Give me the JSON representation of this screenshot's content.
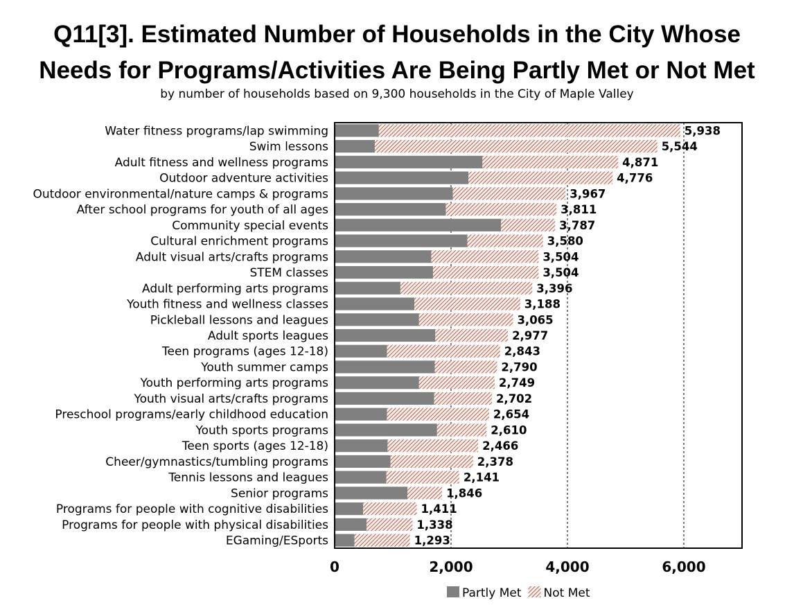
{
  "chart_data": {
    "type": "bar",
    "orientation": "horizontal",
    "stacked": true,
    "title_line1": "Q11[3]. Estimated Number of Households in the City Whose",
    "title_line2": "Needs for Programs/Activities Are Being Partly Met or Not Met",
    "subtitle": "by number of households based on 9,300 households in the City of Maple Valley",
    "xlim": [
      0,
      7000
    ],
    "x_ticks": [
      0,
      2000,
      4000,
      6000
    ],
    "x_tick_labels": [
      "0",
      "2,000",
      "4,000",
      "6,000"
    ],
    "grid": "dashed vertical at 2,000 / 4,000 / 6,000",
    "legend_position": "bottom",
    "categories": [
      "Water fitness programs/lap swimming",
      "Swim lessons",
      "Adult fitness and wellness programs",
      "Outdoor adventure activities",
      "Outdoor environmental/nature camps & programs",
      "After school programs for youth of all ages",
      "Community special events",
      "Cultural enrichment programs",
      "Adult visual arts/crafts programs",
      "STEM classes",
      "Adult performing arts programs",
      "Youth fitness and wellness classes",
      "Pickleball lessons and leagues",
      "Adult sports leagues",
      "Teen programs (ages 12-18)",
      "Youth summer camps",
      "Youth performing arts programs",
      "Youth visual arts/crafts programs",
      "Preschool programs/early childhood education",
      "Youth sports programs",
      "Teen sports (ages 12-18)",
      "Cheer/gymnastics/tumbling programs",
      "Tennis lessons and leagues",
      "Senior programs",
      "Programs for people with cognitive disabilities",
      "Programs for people with physical disabilities",
      "EGaming/ESports"
    ],
    "totals": [
      5938,
      5544,
      4871,
      4776,
      3967,
      3811,
      3787,
      3580,
      3504,
      3504,
      3396,
      3188,
      3065,
      2977,
      2843,
      2790,
      2749,
      2702,
      2654,
      2610,
      2466,
      2378,
      2141,
      1846,
      1411,
      1338,
      1293
    ],
    "total_labels": [
      "5,938",
      "5,544",
      "4,871",
      "4,776",
      "3,967",
      "3,811",
      "3,787",
      "3,580",
      "3,504",
      "3,504",
      "3,396",
      "3,188",
      "3,065",
      "2,977",
      "2,843",
      "2,790",
      "2,749",
      "2,702",
      "2,654",
      "2,610",
      "2,466",
      "2,378",
      "2,141",
      "1,846",
      "1,411",
      "1,338",
      "1,293"
    ],
    "series": [
      {
        "name": "Partly Met",
        "color": "#808080",
        "values": [
          760,
          690,
          2540,
          2300,
          2030,
          1910,
          2860,
          2280,
          1660,
          1690,
          1130,
          1370,
          1450,
          1730,
          900,
          1720,
          1450,
          1710,
          900,
          1760,
          910,
          960,
          890,
          1250,
          490,
          550,
          340
        ]
      },
      {
        "name": "Not Met",
        "color": "#8b2a1a",
        "values": [
          5178,
          4854,
          2331,
          2476,
          1937,
          1901,
          927,
          1300,
          1844,
          1814,
          2266,
          1818,
          1615,
          1247,
          1943,
          1070,
          1299,
          992,
          1754,
          850,
          1556,
          1418,
          1251,
          596,
          921,
          788,
          953
        ]
      }
    ]
  }
}
